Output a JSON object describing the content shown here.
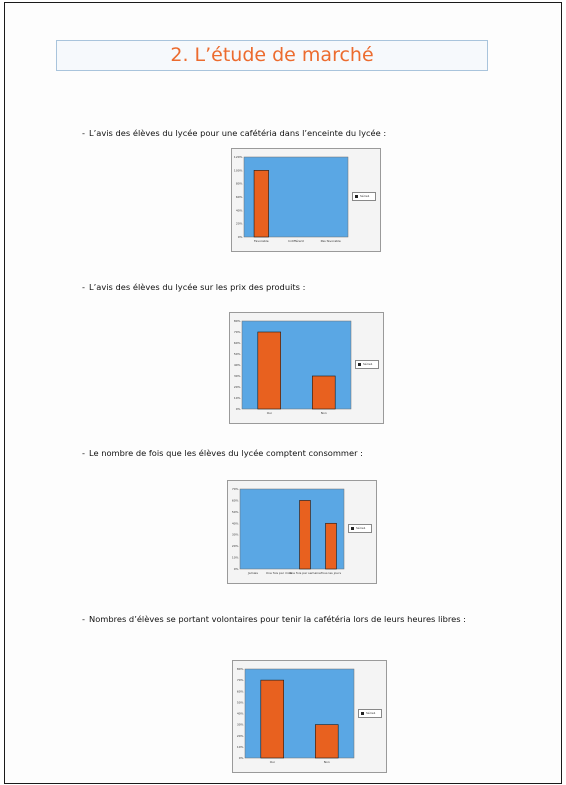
{
  "document": {
    "title": "2. L’étude de marché",
    "bullet_marker": "-",
    "sections": [
      {
        "text": "L’avis des élèves du lycée pour une cafétéria dans l’enceinte du lycée :",
        "chart_index": 0
      },
      {
        "text": "L’avis des élèves du lycée sur les prix des produits :",
        "chart_index": 1
      },
      {
        "text": "Le nombre de fois que les élèves du lycée comptent consommer :",
        "chart_index": 2
      },
      {
        "text": "Nombres d’élèves se portant volontaires pour tenir la cafétéria lors de leurs heures libres :",
        "chart_index": 3
      }
    ]
  },
  "colors": {
    "title": "#ec6b2e",
    "plot_bg": "#5aa7e4",
    "bar": "#e8611f",
    "bar_stroke": "#1a1a1a"
  },
  "chart_data": [
    {
      "type": "bar",
      "categories": [
        "Favorable",
        "Indifférent",
        "Pas favorable"
      ],
      "values": [
        100,
        0,
        0
      ],
      "ylim": [
        0,
        120
      ],
      "yticks": [
        "0%",
        "20%",
        "40%",
        "60%",
        "80%",
        "100%",
        "120%"
      ],
      "legend": "Série1",
      "legend_position": "right",
      "grid": false
    },
    {
      "type": "bar",
      "categories": [
        "Oui",
        "Non"
      ],
      "values": [
        70,
        30
      ],
      "ylim": [
        0,
        80
      ],
      "yticks": [
        "0%",
        "10%",
        "20%",
        "30%",
        "40%",
        "50%",
        "60%",
        "70%",
        "80%"
      ],
      "legend": "Série1",
      "legend_position": "right",
      "grid": false
    },
    {
      "type": "bar",
      "categories": [
        "Jamais",
        "Une fois par mois",
        "Une fois par semaine",
        "Tous les jours"
      ],
      "values": [
        0,
        0,
        60,
        40
      ],
      "ylim": [
        0,
        70
      ],
      "yticks": [
        "0%",
        "10%",
        "20%",
        "30%",
        "40%",
        "50%",
        "60%",
        "70%"
      ],
      "legend": "Série1",
      "legend_position": "right",
      "grid": false
    },
    {
      "type": "bar",
      "categories": [
        "Oui",
        "Non"
      ],
      "values": [
        70,
        30
      ],
      "ylim": [
        0,
        80
      ],
      "yticks": [
        "0%",
        "10%",
        "20%",
        "30%",
        "40%",
        "50%",
        "60%",
        "70%",
        "80%"
      ],
      "legend": "Série1",
      "legend_position": "right",
      "grid": false
    }
  ]
}
